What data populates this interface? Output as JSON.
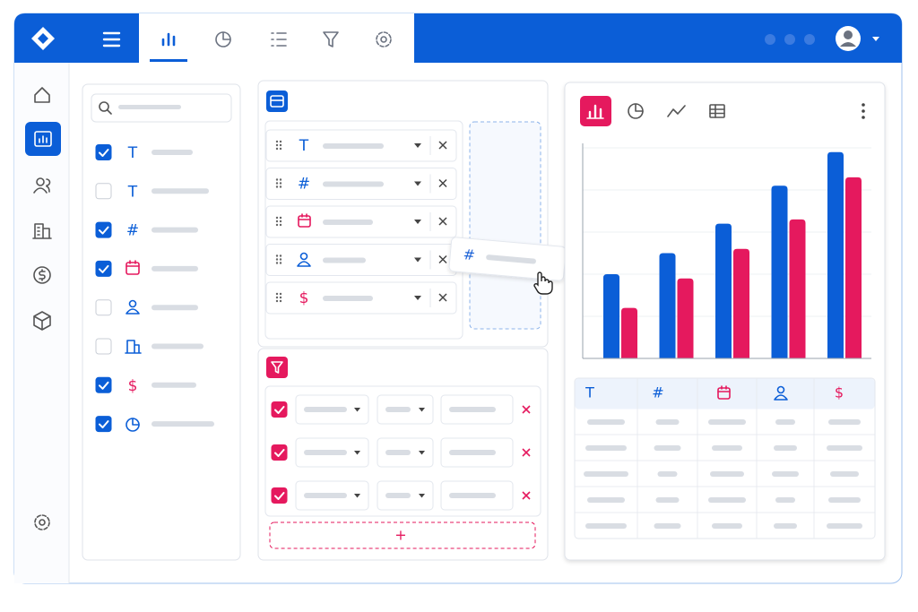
{
  "chart_data": {
    "type": "bar",
    "ylim": [
      0,
      5
    ],
    "series": [
      {
        "color": "#0b5ed7",
        "values": [
          2.0,
          2.5,
          3.2,
          4.1,
          4.9
        ]
      },
      {
        "color": "#e5195e",
        "values": [
          1.2,
          1.9,
          2.6,
          3.3,
          4.3
        ]
      }
    ]
  },
  "fields": [
    {
      "checked": true,
      "glyph": "T"
    },
    {
      "checked": false,
      "glyph": "T"
    },
    {
      "checked": true,
      "glyph": "#"
    },
    {
      "checked": true
    },
    {
      "checked": false
    },
    {
      "checked": false
    },
    {
      "checked": true,
      "glyph": "$"
    },
    {
      "checked": true
    }
  ],
  "dimensions": [
    "T",
    "#",
    "$"
  ],
  "drag_chip": "#",
  "filters": [
    {
      "checked": true
    },
    {
      "checked": true
    },
    {
      "checked": true
    }
  ],
  "add_button": "+",
  "table_header": [
    "T",
    "#",
    "$"
  ]
}
